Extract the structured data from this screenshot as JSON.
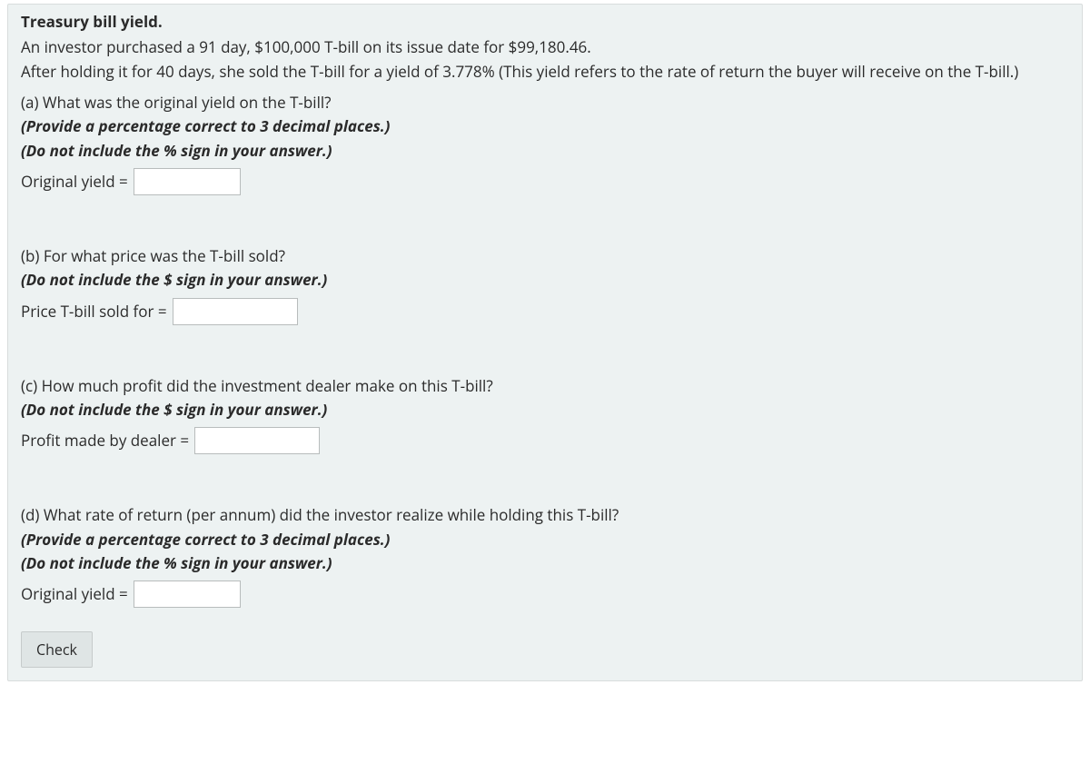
{
  "title": "Treasury bill yield.",
  "intro": "An investor purchased a 91 day, $100,000 T-bill on its issue date for $99,180.46.\nAfter holding it for 40 days, she sold the T-bill for a yield of 3.778% (This yield refers to the rate of return the buyer will receive on the T-bill.)",
  "parts": {
    "a": {
      "question": "(a) What was the original yield on the T-bill?",
      "instr1": "(Provide a percentage correct to 3 decimal places.)",
      "instr2": "(Do not include the % sign in your answer.)",
      "label": "Original yield ="
    },
    "b": {
      "question": "(b) For what price was the T-bill sold?",
      "instr1": "(Do not include the $ sign in your answer.)",
      "label": "Price T-bill sold for ="
    },
    "c": {
      "question": "(c) How much profit did the investment dealer make on this T-bill?",
      "instr1": "(Do not include the $ sign in your answer.)",
      "label": "Profit made by dealer ="
    },
    "d": {
      "question": "(d) What rate of return (per annum) did the investor realize while holding this T-bill?",
      "instr1": "(Provide a percentage correct to 3 decimal places.)",
      "instr2": "(Do not include the % sign in your answer.)",
      "label": "Original yield ="
    }
  },
  "check_label": "Check"
}
